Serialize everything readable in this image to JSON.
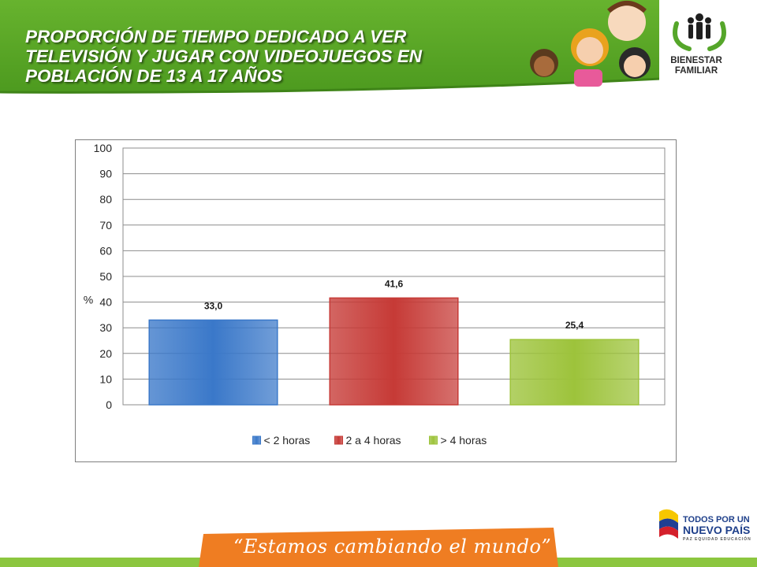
{
  "header": {
    "title_lines": [
      "PROPORCIÓN DE TIEMPO DEDICADO A VER",
      "TELEVISIÓN Y JUGAR CON VIDEOJUEGOS EN",
      "POBLACIÓN DE 13 A 17 AÑOS"
    ],
    "logo_lines": [
      "BIENESTAR",
      "FAMILIAR"
    ]
  },
  "chart_data": {
    "type": "bar",
    "categories": [
      "< 2 horas",
      "2 a 4 horas",
      "> 4 horas"
    ],
    "values": [
      33.0,
      41.6,
      25.4
    ],
    "value_labels": [
      "33,0",
      "41,6",
      "25,4"
    ],
    "colors": [
      "#3a78c9",
      "#c63a36",
      "#9dc33b"
    ],
    "ylabel": "%",
    "ylim": [
      0,
      100
    ],
    "yticks": [
      0,
      10,
      20,
      30,
      40,
      50,
      60,
      70,
      80,
      90,
      100
    ],
    "grid": true,
    "legend_position": "bottom"
  },
  "footer": {
    "slogan": "“Estamos cambiando el mundo”",
    "gov_lines": [
      "TODOS POR UN",
      "NUEVO PAÍS",
      "PAZ  EQUIDAD  EDUCACIÓN"
    ]
  }
}
